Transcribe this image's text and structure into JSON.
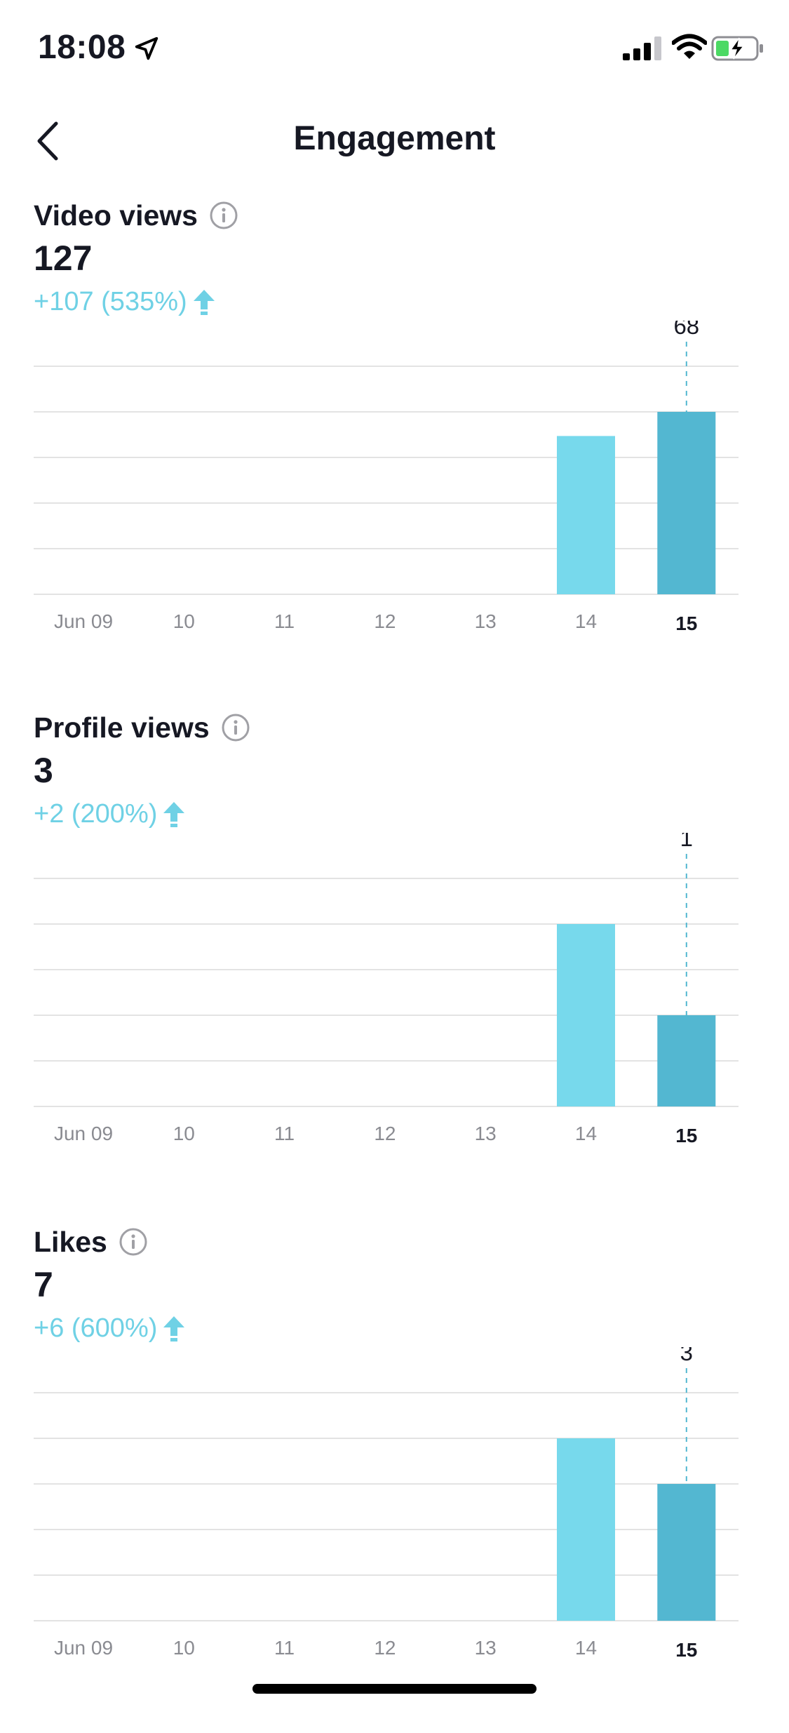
{
  "status_bar": {
    "time": "18:08",
    "icons": [
      "location-arrow-icon",
      "signal-icon",
      "wifi-icon",
      "battery-charging-icon"
    ],
    "battery_color": "#4cd964"
  },
  "header": {
    "title": "Engagement",
    "back_icon": "chevron-left-icon"
  },
  "colors": {
    "accent": "#6fd1e5",
    "bar_previous": "#77d9ec",
    "bar_today": "#53b7d1",
    "grid": "#e3e3e3",
    "tick_text": "#8a8b91"
  },
  "sections": [
    {
      "title": "Video views",
      "total": "127",
      "change": "+107 (535%)"
    },
    {
      "title": "Profile views",
      "total": "3",
      "change": "+2 (200%)"
    },
    {
      "title": "Likes",
      "total": "7",
      "change": "+6 (600%)"
    }
  ],
  "chart_data": [
    {
      "type": "bar",
      "categories": [
        "Jun 09",
        "10",
        "11",
        "12",
        "13",
        "14",
        "15"
      ],
      "values": [
        0,
        0,
        0,
        0,
        0,
        59,
        68
      ],
      "highlight_index": 6,
      "highlight_value_label": "68",
      "ylim": [
        0,
        85
      ],
      "grid": true
    },
    {
      "type": "bar",
      "categories": [
        "Jun 09",
        "10",
        "11",
        "12",
        "13",
        "14",
        "15"
      ],
      "values": [
        0,
        0,
        0,
        0,
        0,
        2,
        1
      ],
      "highlight_index": 6,
      "highlight_value_label": "1",
      "ylim": [
        0,
        2.5
      ],
      "grid": true
    },
    {
      "type": "bar",
      "categories": [
        "Jun 09",
        "10",
        "11",
        "12",
        "13",
        "14",
        "15"
      ],
      "values": [
        0,
        0,
        0,
        0,
        0,
        4,
        3
      ],
      "highlight_index": 6,
      "highlight_value_label": "3",
      "ylim": [
        0,
        5
      ],
      "grid": true
    }
  ]
}
